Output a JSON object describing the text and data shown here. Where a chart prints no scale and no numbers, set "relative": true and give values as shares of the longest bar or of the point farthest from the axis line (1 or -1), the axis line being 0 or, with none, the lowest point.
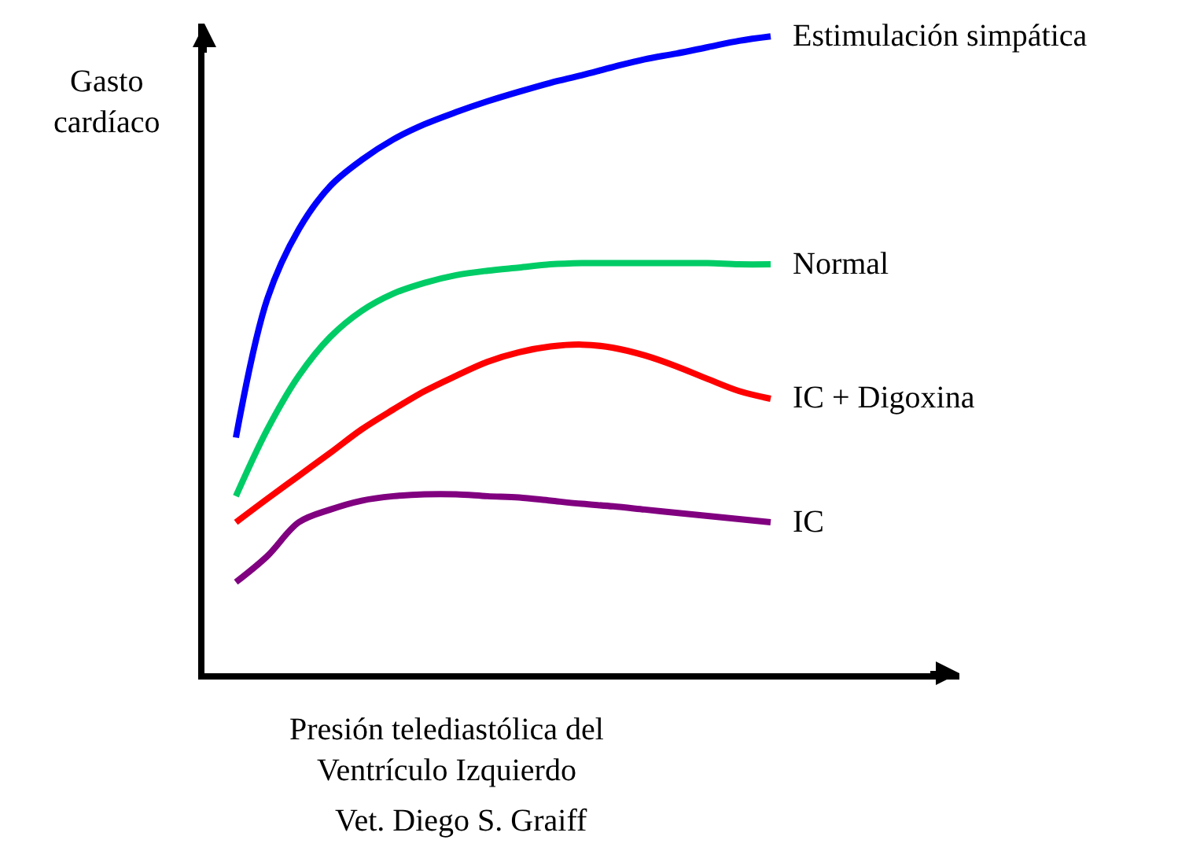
{
  "chart_data": {
    "type": "line",
    "relative": true,
    "xlabel": "Presión telediastólica del\nVentrículo Izquierdo",
    "ylabel": "Gasto\ncardíaco",
    "annotations": [
      "Vet. Diego S. Graiff"
    ],
    "legend": false,
    "marker": "none",
    "line_style": "solid",
    "categories": [
      null,
      null,
      null,
      null,
      null,
      null,
      null,
      null,
      null,
      null,
      null,
      null,
      null,
      null,
      null,
      null,
      null,
      null
    ],
    "series": [
      {
        "name": "Estimulación simpática",
        "color": "#0000ff",
        "values": [
          0.37,
          0.588,
          0.697,
          0.765,
          0.806,
          0.838,
          0.862,
          0.881,
          0.898,
          0.913,
          0.927,
          0.939,
          0.952,
          0.964,
          0.973,
          0.983,
          0.993,
          1
        ]
      },
      {
        "name": "Normal",
        "color": "#00cc66",
        "values": [
          0.278,
          0.383,
          0.467,
          0.528,
          0.569,
          0.596,
          0.613,
          0.625,
          0.632,
          0.637,
          0.642,
          0.644,
          0.644,
          0.644,
          0.644,
          0.644,
          0.642,
          0.642
        ]
      },
      {
        "name": "IC + Digoxina",
        "color": "#ff0000",
        "values": [
          0.237,
          0.274,
          0.31,
          0.346,
          0.383,
          0.414,
          0.443,
          0.467,
          0.489,
          0.504,
          0.513,
          0.516,
          0.511,
          0.499,
          0.482,
          0.462,
          0.443,
          0.431
        ]
      },
      {
        "name": "IC",
        "color": "#800080",
        "values": [
          0.143,
          0.184,
          0.237,
          0.257,
          0.271,
          0.278,
          0.281,
          0.281,
          0.278,
          0.276,
          0.271,
          0.266,
          0.262,
          0.257,
          0.252,
          0.247,
          0.242,
          0.237
        ]
      }
    ]
  }
}
